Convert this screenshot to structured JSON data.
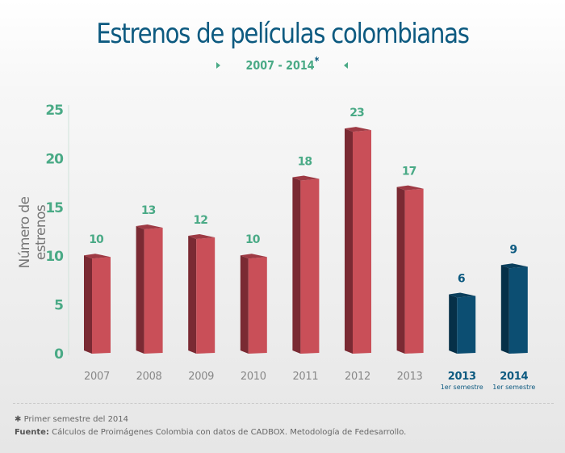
{
  "header": {
    "title": "Estrenos de películas colombianas",
    "subtitle_range": "2007 - 2014",
    "subtitle_mark": "*"
  },
  "colors": {
    "title": "#0d5a80",
    "accent_green": "#4aaa86",
    "bar_red_front": "#c94f58",
    "bar_red_side": "#7a2a33",
    "bar_red_top": "#9e3a44",
    "bar_blue_front": "#0c4e72",
    "bar_blue_side": "#063048",
    "bar_blue_top": "#0a3f5c",
    "axis_label": "#777777",
    "tick_label": "#4aaa86",
    "category_gray": "#888888",
    "category_blue": "#0d5a80"
  },
  "chart_data": {
    "type": "bar",
    "title": "Estrenos de películas colombianas",
    "subtitle": "2007 - 2014*",
    "xlabel": "",
    "ylabel": "Número de estrenos",
    "ylim": [
      0,
      25
    ],
    "yticks": [
      0,
      5,
      10,
      15,
      20,
      25
    ],
    "grid": false,
    "categories": [
      {
        "label": "2007",
        "sublabel": "",
        "highlight": false
      },
      {
        "label": "2008",
        "sublabel": "",
        "highlight": false
      },
      {
        "label": "2009",
        "sublabel": "",
        "highlight": false
      },
      {
        "label": "2010",
        "sublabel": "",
        "highlight": false
      },
      {
        "label": "2011",
        "sublabel": "",
        "highlight": false
      },
      {
        "label": "2012",
        "sublabel": "",
        "highlight": false
      },
      {
        "label": "2013",
        "sublabel": "",
        "highlight": false
      },
      {
        "label": "2013",
        "sublabel": "1er semestre",
        "highlight": true
      },
      {
        "label": "2014",
        "sublabel": "1er semestre",
        "highlight": true
      }
    ],
    "values": [
      10,
      13,
      12,
      10,
      18,
      23,
      17,
      6,
      9
    ],
    "data_labels": [
      "10",
      "13",
      "12",
      "10",
      "18",
      "23",
      "17",
      "6",
      "9"
    ]
  },
  "footer": {
    "note_symbol": "✱",
    "note_text": "Primer semestre del 2014",
    "source_label": "Fuente:",
    "source_text": "Cálculos de Proimágenes Colombia con datos de CADBOX. Metodología de Fedesarrollo."
  }
}
